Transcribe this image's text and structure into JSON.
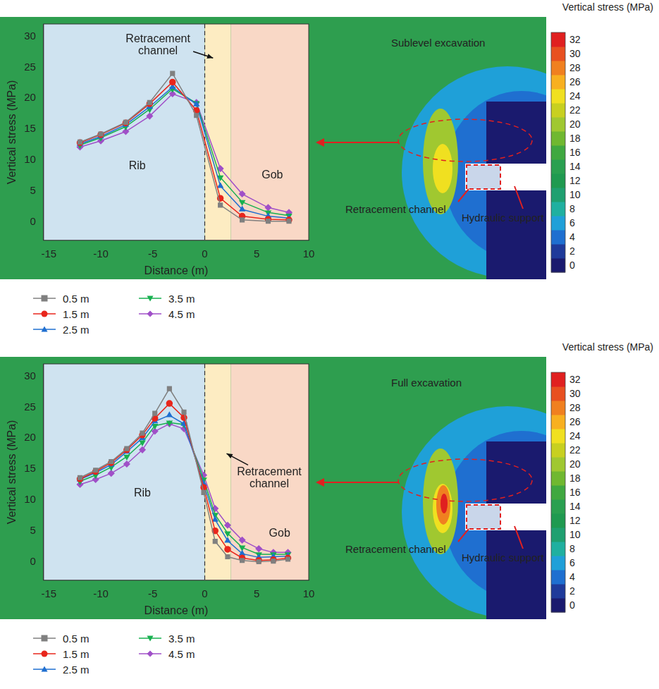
{
  "chart_data": [
    {
      "type": "line",
      "map_labels": [
        "Sublevel excavation",
        "Retracement channel",
        "Hydraulic support"
      ],
      "xlabel": "Distance (m)",
      "ylabel": "Vertical stress (MPa)",
      "xlim": [
        -15.5,
        10
      ],
      "xticks": [
        -15,
        -10,
        -5,
        0,
        5,
        10
      ],
      "ylim": [
        -3,
        32
      ],
      "yticks": [
        0,
        5,
        10,
        15,
        20,
        25,
        30
      ],
      "grid": false,
      "legend": "bottom",
      "divider_x": 0,
      "regions": [
        {
          "name": "Rib",
          "x0": -15.5,
          "x1": 0,
          "color": "#cfe3f0"
        },
        {
          "name": "Retracement channel",
          "x0": 0,
          "x1": 2.5,
          "color": "#fdecc2"
        },
        {
          "name": "Gob",
          "x0": 2.5,
          "x1": 10,
          "color": "#f9d8c6"
        }
      ],
      "annotations": [
        {
          "text": "Rib",
          "x": -6.5,
          "y": 9
        },
        {
          "text": "Gob",
          "x": 6.5,
          "y": 7.5
        },
        {
          "text": "Retracement channel",
          "x": -4.5,
          "y": 29.5,
          "arrow_to": [
            0.8,
            26.5
          ]
        }
      ],
      "x": [
        -12,
        -10,
        -7.6,
        -5.3,
        -3.1,
        -0.8,
        1.5,
        3.6,
        6.1,
        8.1
      ],
      "series": [
        {
          "name": "0.5 m",
          "color": "#808080",
          "marker": "square",
          "values": [
            12.9,
            14.2,
            16.1,
            19.3,
            24.0,
            17.2,
            2.7,
            0.3,
            0.1,
            0.1
          ]
        },
        {
          "name": "1.5 m",
          "color": "#e8261c",
          "marker": "circle",
          "values": [
            12.8,
            14.1,
            16.0,
            19.1,
            22.6,
            18.0,
            3.8,
            0.9,
            0.4,
            0.3
          ]
        },
        {
          "name": "2.5 m",
          "color": "#1f6fd0",
          "marker": "triangle",
          "values": [
            12.6,
            13.8,
            15.7,
            18.6,
            21.8,
            19.0,
            5.8,
            2.0,
            0.9,
            0.6
          ]
        },
        {
          "name": "3.5 m",
          "color": "#18b050",
          "marker": "triangle-down",
          "values": [
            12.4,
            13.6,
            15.4,
            18.2,
            21.5,
            19.2,
            7.2,
            3.2,
            1.5,
            1.0
          ]
        },
        {
          "name": "4.5 m",
          "color": "#a050c8",
          "marker": "diamond",
          "values": [
            12.1,
            13.1,
            14.6,
            17.1,
            20.7,
            19.3,
            8.6,
            4.5,
            2.3,
            1.5
          ]
        }
      ],
      "colorbar": {
        "title": "Vertical stress (MPa)",
        "range": [
          -1,
          33
        ],
        "ticks": [
          0,
          2,
          4,
          6,
          8,
          10,
          12,
          14,
          16,
          18,
          20,
          22,
          24,
          26,
          28,
          30,
          32
        ]
      }
    },
    {
      "type": "line",
      "map_labels": [
        "Full excavation",
        "Retracement channel",
        "Hydraulic support"
      ],
      "xlabel": "Distance (m)",
      "ylabel": "Vertical stress (MPa)",
      "xlim": [
        -15.5,
        10
      ],
      "xticks": [
        -15,
        -10,
        -5,
        0,
        5,
        10
      ],
      "ylim": [
        -3,
        32
      ],
      "yticks": [
        0,
        5,
        10,
        15,
        20,
        25,
        30
      ],
      "grid": false,
      "legend": "bottom",
      "divider_x": 0,
      "regions": [
        {
          "name": "Rib",
          "x0": -15.5,
          "x1": 0,
          "color": "#cfe3f0"
        },
        {
          "name": "Retracement channel",
          "x0": 0,
          "x1": 2.5,
          "color": "#fdecc2"
        },
        {
          "name": "Gob",
          "x0": 2.5,
          "x1": 10,
          "color": "#f9d8c6"
        }
      ],
      "annotations": [
        {
          "text": "Rib",
          "x": -6,
          "y": 11
        },
        {
          "text": "Gob",
          "x": 7.2,
          "y": 4.5
        },
        {
          "text": "Retracement channel",
          "x": 6.2,
          "y": 14.5,
          "arrow_to": [
            2.1,
            17.5
          ]
        }
      ],
      "x": [
        -12,
        -10.5,
        -9,
        -7.5,
        -6,
        -4.8,
        -3.4,
        -2,
        -0.1,
        1,
        2.2,
        3.6,
        5.2,
        6.6,
        8
      ],
      "series": [
        {
          "name": "0.5 m",
          "color": "#808080",
          "marker": "square",
          "values": [
            13.6,
            14.8,
            16.2,
            18.3,
            20.8,
            24.0,
            28.0,
            24.2,
            11.2,
            3.3,
            0.8,
            0.2,
            0.0,
            0.1,
            0.4
          ]
        },
        {
          "name": "1.5 m",
          "color": "#e8261c",
          "marker": "circle",
          "values": [
            13.4,
            14.6,
            16.0,
            18.1,
            20.5,
            23.2,
            25.6,
            23.3,
            12.0,
            5.0,
            2.0,
            0.6,
            0.2,
            0.3,
            0.6
          ]
        },
        {
          "name": "2.5 m",
          "color": "#1f6fd0",
          "marker": "triangle",
          "values": [
            13.3,
            14.4,
            15.7,
            17.8,
            20.0,
            22.7,
            23.7,
            22.3,
            12.6,
            6.8,
            3.4,
            1.3,
            0.7,
            0.8,
            0.9
          ]
        },
        {
          "name": "3.5 m",
          "color": "#18b050",
          "marker": "triangle-down",
          "values": [
            13.0,
            14.0,
            15.3,
            17.0,
            19.3,
            22.0,
            22.5,
            22.2,
            13.3,
            7.6,
            4.6,
            2.3,
            1.2,
            1.2,
            1.2
          ]
        },
        {
          "name": "4.5 m",
          "color": "#a050c8",
          "marker": "diamond",
          "values": [
            12.5,
            13.3,
            14.3,
            15.8,
            18.1,
            21.1,
            22.3,
            21.5,
            14.0,
            8.6,
            5.9,
            3.5,
            2.1,
            1.5,
            1.5
          ]
        }
      ],
      "colorbar": {
        "title": "Vertical stress (MPa)",
        "range": [
          -1,
          33
        ],
        "ticks": [
          0,
          2,
          4,
          6,
          8,
          10,
          12,
          14,
          16,
          18,
          20,
          22,
          24,
          26,
          28,
          30,
          32
        ]
      }
    }
  ]
}
